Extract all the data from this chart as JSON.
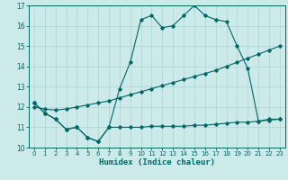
{
  "xlabel": "Humidex (Indice chaleur)",
  "background_color": "#cceaea",
  "grid_color": "#aad4d4",
  "line_color": "#006666",
  "xlim": [
    -0.5,
    23.5
  ],
  "ylim": [
    10,
    17
  ],
  "yticks": [
    10,
    11,
    12,
    13,
    14,
    15,
    16,
    17
  ],
  "xticks": [
    0,
    1,
    2,
    3,
    4,
    5,
    6,
    7,
    8,
    9,
    10,
    11,
    12,
    13,
    14,
    15,
    16,
    17,
    18,
    19,
    20,
    21,
    22,
    23
  ],
  "line_zigzag_x": [
    0,
    1,
    2,
    3,
    4,
    5,
    6,
    7,
    8,
    9,
    10,
    11,
    12,
    13,
    14,
    15,
    16,
    17,
    18,
    19,
    20,
    21,
    22,
    23
  ],
  "line_zigzag_y": [
    12.2,
    11.7,
    11.4,
    10.9,
    11.0,
    10.5,
    10.3,
    11.0,
    12.9,
    14.2,
    16.3,
    16.5,
    15.9,
    16.0,
    16.5,
    17.0,
    16.5,
    16.3,
    16.2,
    15.0,
    13.9,
    11.3,
    11.4,
    11.4
  ],
  "line_diag_x": [
    0,
    1,
    2,
    3,
    4,
    5,
    6,
    7,
    8,
    9,
    10,
    11,
    12,
    13,
    14,
    15,
    16,
    17,
    18,
    19,
    20,
    21,
    22,
    23
  ],
  "line_diag_y": [
    12.0,
    11.9,
    11.85,
    11.9,
    12.0,
    12.1,
    12.2,
    12.3,
    12.45,
    12.6,
    12.75,
    12.9,
    13.05,
    13.2,
    13.35,
    13.5,
    13.65,
    13.8,
    14.0,
    14.2,
    14.4,
    14.6,
    14.8,
    15.0
  ],
  "line_flat_x": [
    0,
    1,
    2,
    3,
    4,
    5,
    6,
    7,
    8,
    9,
    10,
    11,
    12,
    13,
    14,
    15,
    16,
    17,
    18,
    19,
    20,
    21,
    22,
    23
  ],
  "line_flat_y": [
    12.2,
    11.7,
    11.4,
    10.9,
    11.0,
    10.5,
    10.3,
    11.0,
    11.0,
    11.0,
    11.0,
    11.05,
    11.05,
    11.05,
    11.05,
    11.1,
    11.1,
    11.15,
    11.2,
    11.25,
    11.25,
    11.3,
    11.35,
    11.4
  ]
}
